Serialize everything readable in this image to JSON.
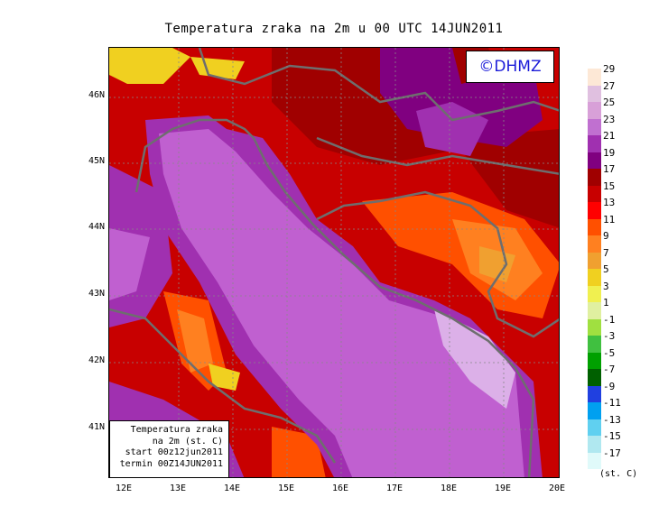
{
  "title": "Temperatura zraka na 2m u 00 UTC 14JUN2011",
  "logo_text": "©DHMZ",
  "info_box": {
    "line1": "Temperatura zraka",
    "line2": "na 2m (st. C)",
    "line3": "start 00z12jun2011",
    "line4": "termin 00Z14JUN2011"
  },
  "lat_labels": [
    "46N",
    "45N",
    "44N",
    "43N",
    "42N",
    "41N"
  ],
  "lon_labels": [
    "12E",
    "13E",
    "14E",
    "15E",
    "16E",
    "17E",
    "18E",
    "19E",
    "20E"
  ],
  "legend": {
    "unit": "(st. C)",
    "labels": [
      "29",
      "27",
      "25",
      "23",
      "21",
      "19",
      "17",
      "15",
      "13",
      "11",
      "9",
      "7",
      "5",
      "3",
      "1",
      "-1",
      "-3",
      "-5",
      "-7",
      "-9",
      "-11",
      "-13",
      "-15",
      "-17"
    ],
    "colors": [
      "#fde8d6",
      "#e0c0e0",
      "#d8a0d8",
      "#c070d0",
      "#a030b0",
      "#800080",
      "#a00000",
      "#c80000",
      "#ff0000",
      "#ff5000",
      "#ff8020",
      "#f0a030",
      "#f0d020",
      "#f0f050",
      "#e0f0a0",
      "#a0e040",
      "#40c040",
      "#00a000",
      "#006000",
      "#2040e0",
      "#00a0f0",
      "#60d0f0",
      "#b0e8f0",
      "#e0fafa"
    ]
  },
  "colors": {
    "sea": "#c060d0",
    "sea_light": "#dcb0e8",
    "coast_border": "#6e6e6e",
    "grid": "#888888",
    "logo_text": "#1a1ad8"
  }
}
